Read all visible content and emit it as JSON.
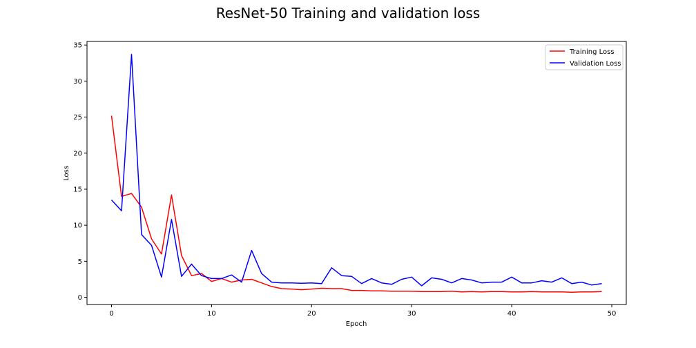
{
  "chart_data": {
    "type": "line",
    "title": "ResNet-50 Training and validation loss",
    "xlabel": "Epoch",
    "ylabel": "Loss",
    "xlim": [
      -2.45,
      51.45
    ],
    "ylim": [
      -1.0,
      35.5
    ],
    "xticks": [
      0,
      10,
      20,
      30,
      40,
      50
    ],
    "yticks": [
      0,
      5,
      10,
      15,
      20,
      25,
      30,
      35
    ],
    "grid": false,
    "legend_position": "top-right",
    "x": [
      0,
      1,
      2,
      3,
      4,
      5,
      6,
      7,
      8,
      9,
      10,
      11,
      12,
      13,
      14,
      15,
      16,
      17,
      18,
      19,
      20,
      21,
      22,
      23,
      24,
      25,
      26,
      27,
      28,
      29,
      30,
      31,
      32,
      33,
      34,
      35,
      36,
      37,
      38,
      39,
      40,
      41,
      42,
      43,
      44,
      45,
      46,
      47,
      48,
      49
    ],
    "series": [
      {
        "name": "Training Loss",
        "color": "#ff0000",
        "values": [
          25.2,
          14.0,
          14.4,
          12.5,
          8.1,
          6.0,
          14.2,
          5.8,
          3.0,
          3.3,
          2.2,
          2.6,
          2.1,
          2.4,
          2.5,
          2.0,
          1.5,
          1.2,
          1.15,
          1.05,
          1.15,
          1.25,
          1.2,
          1.2,
          0.95,
          0.95,
          0.9,
          0.9,
          0.85,
          0.85,
          0.85,
          0.8,
          0.8,
          0.8,
          0.85,
          0.75,
          0.8,
          0.75,
          0.8,
          0.8,
          0.75,
          0.75,
          0.8,
          0.75,
          0.75,
          0.75,
          0.7,
          0.75,
          0.75,
          0.8
        ]
      },
      {
        "name": "Validation Loss",
        "color": "#0000ff",
        "values": [
          13.5,
          12.0,
          33.7,
          8.7,
          7.2,
          2.8,
          10.8,
          2.9,
          4.6,
          3.0,
          2.6,
          2.6,
          3.1,
          2.1,
          6.5,
          3.3,
          2.1,
          2.0,
          2.0,
          1.95,
          2.0,
          1.9,
          4.1,
          3.0,
          2.9,
          1.9,
          2.6,
          2.0,
          1.8,
          2.5,
          2.8,
          1.6,
          2.7,
          2.5,
          2.0,
          2.6,
          2.4,
          2.0,
          2.1,
          2.1,
          2.8,
          2.0,
          2.0,
          2.3,
          2.1,
          2.7,
          1.9,
          2.1,
          1.7,
          1.9
        ]
      }
    ]
  }
}
